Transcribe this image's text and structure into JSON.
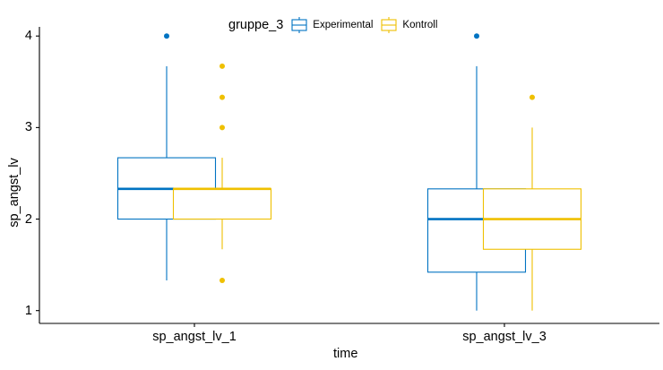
{
  "chart_data": {
    "type": "box",
    "title": "",
    "xlabel": "time",
    "ylabel": "sp_angst_lv",
    "ylim": [
      0.86,
      4.1
    ],
    "yticks": [
      1,
      2,
      3,
      4
    ],
    "categories": [
      "sp_angst_lv_1",
      "sp_angst_lv_3"
    ],
    "legend": {
      "title": "gruppe_3",
      "position": "top"
    },
    "series": [
      {
        "name": "Experimental",
        "color": "#0073C2",
        "boxes": [
          {
            "category": "sp_angst_lv_1",
            "whisker_low": 1.33,
            "q1": 2.0,
            "median": 2.33,
            "q3": 2.67,
            "whisker_high": 3.67,
            "outliers": [
              4.0
            ]
          },
          {
            "category": "sp_angst_lv_3",
            "whisker_low": 1.0,
            "q1": 1.42,
            "median": 2.0,
            "q3": 2.33,
            "whisker_high": 3.67,
            "outliers": [
              4.0
            ]
          }
        ]
      },
      {
        "name": "Kontroll",
        "color": "#EFC000",
        "boxes": [
          {
            "category": "sp_angst_lv_1",
            "whisker_low": 1.67,
            "q1": 2.0,
            "median": 2.33,
            "q3": 2.33,
            "whisker_high": 2.67,
            "outliers": [
              1.33,
              3.0,
              3.33,
              3.67
            ]
          },
          {
            "category": "sp_angst_lv_3",
            "whisker_low": 1.0,
            "q1": 1.67,
            "median": 2.0,
            "q3": 2.33,
            "whisker_high": 3.0,
            "outliers": [
              3.33
            ]
          }
        ]
      }
    ]
  }
}
